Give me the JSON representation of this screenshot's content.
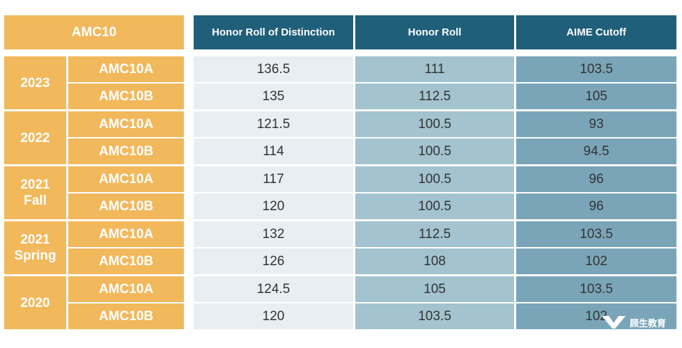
{
  "header": {
    "left": "AMC10",
    "col1": "Honor Roll of Distinction",
    "col2": "Honor Roll",
    "col3": "AIME Cutoff"
  },
  "groups": [
    {
      "year": "2023",
      "rows": [
        {
          "exam": "AMC10A",
          "distinction": "136.5",
          "honor": "111",
          "aime": "103.5"
        },
        {
          "exam": "AMC10B",
          "distinction": "135",
          "honor": "112.5",
          "aime": "105"
        }
      ]
    },
    {
      "year": "2022",
      "rows": [
        {
          "exam": "AMC10A",
          "distinction": "121.5",
          "honor": "100.5",
          "aime": "93"
        },
        {
          "exam": "AMC10B",
          "distinction": "114",
          "honor": "100.5",
          "aime": "94.5"
        }
      ]
    },
    {
      "year": "2021\nFall",
      "rows": [
        {
          "exam": "AMC10A",
          "distinction": "117",
          "honor": "100.5",
          "aime": "96"
        },
        {
          "exam": "AMC10B",
          "distinction": "120",
          "honor": "100.5",
          "aime": "96"
        }
      ]
    },
    {
      "year": "2021\nSpring",
      "rows": [
        {
          "exam": "AMC10A",
          "distinction": "132",
          "honor": "112.5",
          "aime": "103.5"
        },
        {
          "exam": "AMC10B",
          "distinction": "126",
          "honor": "108",
          "aime": "102"
        }
      ]
    },
    {
      "year": "2020",
      "rows": [
        {
          "exam": "AMC10A",
          "distinction": "124.5",
          "honor": "105",
          "aime": "103.5"
        },
        {
          "exam": "AMC10B",
          "distinction": "120",
          "honor": "103.5",
          "aime": "102"
        }
      ]
    }
  ],
  "watermark": {
    "text": "顾生教育",
    "icon": "logo-icon"
  },
  "colors": {
    "orange": "#f2b85c",
    "header_teal": "#1f5f7a",
    "col1": "#e8eef1",
    "col2": "#a2c3cf",
    "col3": "#7aa5b8"
  }
}
